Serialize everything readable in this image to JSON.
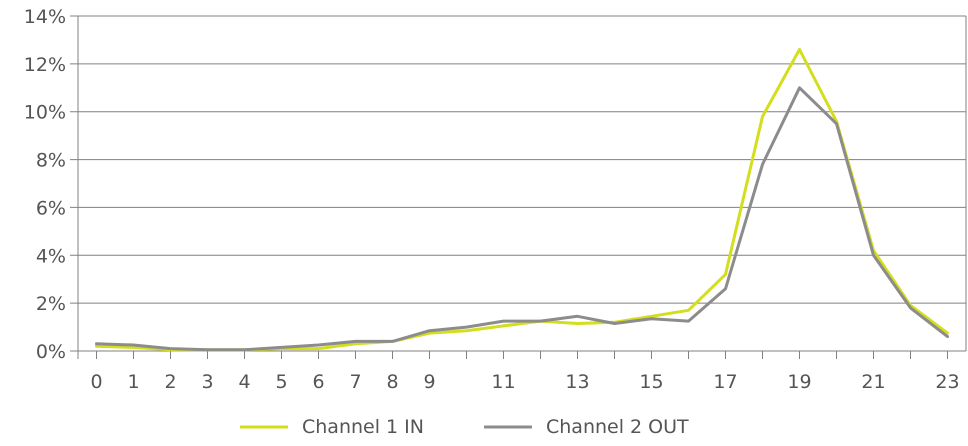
{
  "chart_data": {
    "type": "line",
    "title": "",
    "xlabel": "",
    "ylabel": "",
    "x": [
      0,
      1,
      2,
      3,
      4,
      5,
      6,
      7,
      8,
      9,
      10,
      11,
      12,
      13,
      14,
      15,
      16,
      17,
      18,
      19,
      20,
      21,
      22,
      23
    ],
    "x_tick_labels": [
      "0",
      "1",
      "2",
      "3",
      "4",
      "5",
      "6",
      "7",
      "8",
      "9",
      "11",
      "13",
      "15",
      "17",
      "19",
      "21",
      "23"
    ],
    "x_tick_values": [
      0,
      1,
      2,
      3,
      4,
      5,
      6,
      7,
      8,
      9,
      11,
      13,
      15,
      17,
      19,
      21,
      23
    ],
    "y_tick_labels": [
      "0%",
      "2%",
      "4%",
      "6%",
      "8%",
      "10%",
      "12%",
      "14%"
    ],
    "ylim": [
      0,
      14
    ],
    "y_unit": "%",
    "grid": "horizontal",
    "legend_position": "bottom",
    "series": [
      {
        "name": "Channel 1 IN",
        "color": "#d4de1c",
        "values": [
          0.2,
          0.15,
          0.05,
          0.05,
          0.05,
          0.1,
          0.1,
          0.3,
          0.4,
          0.75,
          0.85,
          1.05,
          1.25,
          1.15,
          1.2,
          1.45,
          1.7,
          3.2,
          9.8,
          12.6,
          9.6,
          4.2,
          1.9,
          0.75
        ]
      },
      {
        "name": "Channel 2 OUT",
        "color": "#8c8c8c",
        "values": [
          0.3,
          0.25,
          0.1,
          0.05,
          0.05,
          0.15,
          0.25,
          0.4,
          0.4,
          0.85,
          1.0,
          1.25,
          1.25,
          1.45,
          1.15,
          1.35,
          1.25,
          2.6,
          7.8,
          11.0,
          9.5,
          4.0,
          1.8,
          0.6
        ]
      }
    ]
  }
}
